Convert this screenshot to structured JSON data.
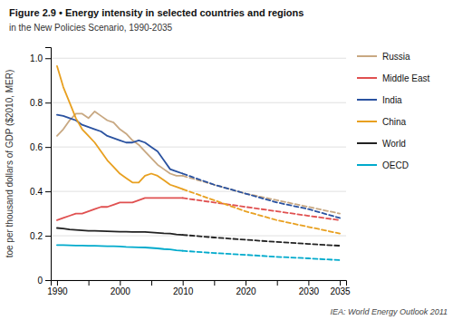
{
  "chart_data": {
    "type": "line",
    "title": "Figure 2.9 • Energy intensity in selected countries and regions",
    "subtitle": "in the New Policies Scenario, 1990-2035",
    "y_label": "toe per thousand dollars of GDP ($2010, MER)",
    "annotations": [
      "IEA: World Energy Outlook 2011"
    ],
    "x": [
      1990,
      1991,
      1992,
      1993,
      1994,
      1995,
      1996,
      1997,
      1998,
      1999,
      2000,
      2001,
      2002,
      2003,
      2004,
      2005,
      2006,
      2007,
      2008,
      2009,
      2010,
      2015,
      2020,
      2025,
      2030,
      2035
    ],
    "xlim": [
      1989,
      2036
    ],
    "xticks": [
      1990,
      {
        "value": 1995,
        "label": null
      },
      2000,
      {
        "value": 2005,
        "label": null
      },
      2010,
      {
        "value": 2015,
        "label": null
      },
      2020,
      {
        "value": 2025,
        "label": null
      },
      2030,
      2035
    ],
    "ylim": [
      0,
      1.05
    ],
    "yticks": [
      0,
      0.2,
      0.4,
      0.6,
      0.8,
      {
        "value": 1.0,
        "label": "1.0"
      }
    ],
    "grid": true,
    "legend": "right",
    "series": [
      {
        "name": "Russia",
        "color": "#c8a882",
        "values": [
          0.65,
          0.68,
          0.72,
          0.75,
          0.75,
          0.73,
          0.76,
          0.74,
          0.72,
          0.71,
          0.68,
          0.66,
          0.63,
          0.61,
          0.58,
          0.55,
          0.52,
          0.5,
          0.48,
          0.47,
          0.47,
          null,
          null,
          null,
          null,
          null
        ],
        "projection": [
          null,
          null,
          null,
          null,
          null,
          null,
          null,
          null,
          null,
          null,
          null,
          null,
          null,
          null,
          null,
          null,
          null,
          null,
          null,
          null,
          0.47,
          0.43,
          0.39,
          0.36,
          0.33,
          0.3
        ]
      },
      {
        "name": "Middle East",
        "color": "#e05050",
        "values": [
          0.27,
          0.28,
          0.29,
          0.3,
          0.3,
          0.31,
          0.32,
          0.33,
          0.33,
          0.34,
          0.35,
          0.35,
          0.35,
          0.36,
          0.37,
          0.37,
          0.37,
          0.37,
          0.37,
          0.37,
          0.37,
          null,
          null,
          null,
          null,
          null
        ],
        "projection": [
          null,
          null,
          null,
          null,
          null,
          null,
          null,
          null,
          null,
          null,
          null,
          null,
          null,
          null,
          null,
          null,
          null,
          null,
          null,
          null,
          0.37,
          0.35,
          0.33,
          0.31,
          0.29,
          0.27
        ]
      },
      {
        "name": "India",
        "color": "#2a52a0",
        "values": [
          0.745,
          0.74,
          0.73,
          0.72,
          0.7,
          0.69,
          0.68,
          0.67,
          0.65,
          0.64,
          0.63,
          0.62,
          0.62,
          0.63,
          0.62,
          0.6,
          0.58,
          0.54,
          0.5,
          0.49,
          0.48,
          null,
          null,
          null,
          null,
          null
        ],
        "projection": [
          null,
          null,
          null,
          null,
          null,
          null,
          null,
          null,
          null,
          null,
          null,
          null,
          null,
          null,
          null,
          null,
          null,
          null,
          null,
          null,
          0.48,
          0.43,
          0.39,
          0.35,
          0.32,
          0.28
        ]
      },
      {
        "name": "China",
        "color": "#e8a020",
        "values": [
          0.965,
          0.87,
          0.8,
          0.73,
          0.68,
          0.65,
          0.62,
          0.58,
          0.54,
          0.51,
          0.48,
          0.46,
          0.44,
          0.44,
          0.47,
          0.48,
          0.47,
          0.45,
          0.43,
          0.42,
          0.41,
          null,
          null,
          null,
          null,
          null
        ],
        "projection": [
          null,
          null,
          null,
          null,
          null,
          null,
          null,
          null,
          null,
          null,
          null,
          null,
          null,
          null,
          null,
          null,
          null,
          null,
          null,
          null,
          0.41,
          0.36,
          0.31,
          0.27,
          0.24,
          0.21
        ]
      },
      {
        "name": "World",
        "color": "#222222",
        "values": [
          0.235,
          0.232,
          0.228,
          0.226,
          0.224,
          0.222,
          0.222,
          0.221,
          0.22,
          0.219,
          0.218,
          0.218,
          0.217,
          0.217,
          0.217,
          0.215,
          0.213,
          0.211,
          0.21,
          0.206,
          0.204,
          null,
          null,
          null,
          null,
          null
        ],
        "projection": [
          null,
          null,
          null,
          null,
          null,
          null,
          null,
          null,
          null,
          null,
          null,
          null,
          null,
          null,
          null,
          null,
          null,
          null,
          null,
          null,
          0.204,
          0.192,
          0.182,
          0.172,
          0.163,
          0.155
        ]
      },
      {
        "name": "OECD",
        "color": "#00aacc",
        "values": [
          0.158,
          0.158,
          0.157,
          0.156,
          0.156,
          0.155,
          0.155,
          0.154,
          0.153,
          0.153,
          0.152,
          0.15,
          0.149,
          0.148,
          0.147,
          0.145,
          0.143,
          0.14,
          0.138,
          0.134,
          0.132,
          null,
          null,
          null,
          null,
          null
        ],
        "projection": [
          null,
          null,
          null,
          null,
          null,
          null,
          null,
          null,
          null,
          null,
          null,
          null,
          null,
          null,
          null,
          null,
          null,
          null,
          null,
          null,
          0.132,
          0.122,
          0.114,
          0.105,
          0.098,
          0.09
        ]
      }
    ]
  }
}
